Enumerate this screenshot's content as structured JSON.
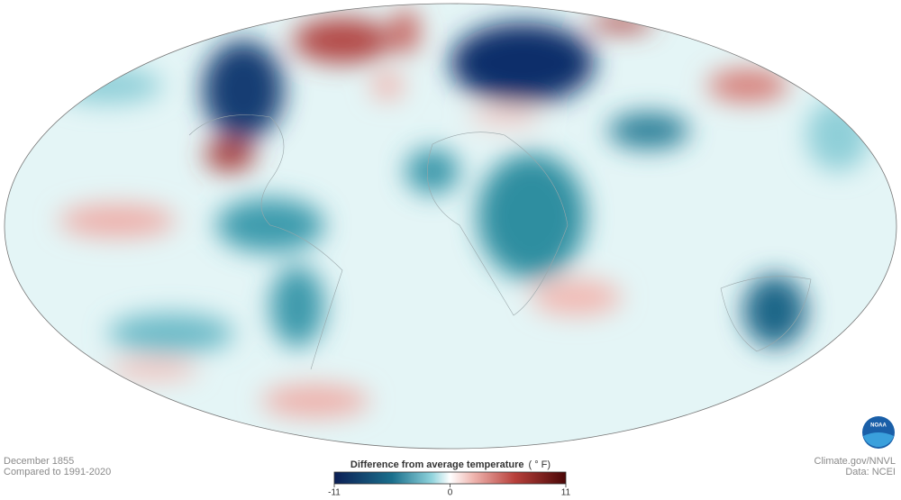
{
  "footer_left": {
    "date": "December 1855",
    "baseline": "Compared to 1991-2020"
  },
  "footer_right": {
    "source": "Climate.gov/NNVL",
    "data": "Data: NCEI"
  },
  "logo": {
    "text": "NOAA"
  },
  "legend": {
    "title": "Difference from average temperature",
    "unit": "( ° F)",
    "range": [
      -11,
      11
    ],
    "ticks": [
      -11,
      0,
      11
    ]
  }
}
